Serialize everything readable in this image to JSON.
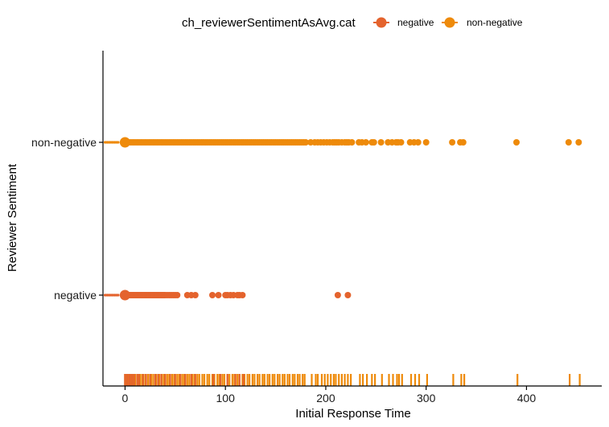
{
  "chart_data": {
    "type": "scatter",
    "xlabel": "Initial Response Time",
    "ylabel": "Reviewer Sentiment",
    "xlim": [
      -22,
      475
    ],
    "x_ticks": [
      0,
      100,
      200,
      300,
      400
    ],
    "categories": [
      "negative",
      "non-negative"
    ],
    "legend": {
      "title": "ch_reviewerSentimentAsAvg.cat",
      "placement": "top",
      "entries": [
        "negative",
        "non-negative"
      ]
    },
    "colors": {
      "negative": "#E4632D",
      "non-negative": "#EE8A0A"
    },
    "grid": false,
    "series": [
      {
        "name": "negative",
        "category": "negative",
        "points": [
          0,
          1,
          2,
          3,
          4,
          5,
          6,
          7,
          8,
          9,
          10,
          11,
          12,
          13,
          14,
          15,
          16,
          17,
          18,
          19,
          20,
          21,
          22,
          23,
          24,
          25,
          26,
          27,
          28,
          29,
          30,
          31,
          32,
          33,
          34,
          35,
          36,
          37,
          38,
          39,
          40,
          42,
          44,
          46,
          48,
          50,
          52,
          62,
          66,
          70,
          87,
          93,
          100,
          102,
          105,
          108,
          112,
          114,
          117,
          212,
          222
        ]
      },
      {
        "name": "non-negative",
        "category": "non-negative",
        "points": [
          0,
          2,
          4,
          6,
          8,
          10,
          12,
          14,
          16,
          18,
          20,
          22,
          24,
          26,
          28,
          30,
          32,
          34,
          36,
          38,
          40,
          42,
          44,
          46,
          48,
          50,
          52,
          54,
          56,
          58,
          60,
          62,
          64,
          66,
          68,
          70,
          72,
          74,
          76,
          78,
          80,
          82,
          84,
          86,
          88,
          90,
          92,
          94,
          96,
          98,
          100,
          102,
          104,
          106,
          108,
          110,
          112,
          114,
          116,
          118,
          120,
          122,
          124,
          126,
          128,
          130,
          132,
          134,
          136,
          138,
          140,
          142,
          144,
          146,
          148,
          150,
          152,
          154,
          156,
          158,
          160,
          162,
          164,
          166,
          168,
          170,
          172,
          174,
          176,
          178,
          180,
          185,
          189,
          192,
          195,
          198,
          201,
          204,
          207,
          209,
          211,
          213,
          216,
          219,
          221,
          223,
          226,
          233,
          236,
          240,
          246,
          248,
          255,
          262,
          266,
          270,
          272,
          275,
          284,
          288,
          292,
          300,
          326,
          334,
          337,
          390,
          442,
          452
        ]
      }
    ],
    "rug": {
      "negative": [
        0,
        2,
        4,
        5,
        7,
        9,
        12,
        14,
        18,
        21,
        25,
        30,
        33,
        36,
        40,
        45,
        50,
        55,
        60,
        66,
        70,
        88,
        95,
        102,
        110,
        114,
        118
      ],
      "non-negative": [
        0,
        1,
        3,
        6,
        8,
        10,
        13,
        15,
        17,
        20,
        23,
        26,
        28,
        31,
        34,
        37,
        39,
        42,
        44,
        47,
        49,
        52,
        54,
        57,
        59,
        62,
        64,
        67,
        69,
        72,
        74,
        77,
        79,
        82,
        84,
        87,
        89,
        92,
        94,
        97,
        99,
        102,
        104,
        107,
        109,
        112,
        114,
        117,
        119,
        122,
        124,
        127,
        129,
        132,
        134,
        137,
        139,
        142,
        144,
        147,
        149,
        152,
        154,
        157,
        159,
        162,
        164,
        167,
        169,
        172,
        174,
        177,
        179,
        186,
        190,
        192,
        196,
        199,
        202,
        205,
        208,
        210,
        213,
        216,
        219,
        222,
        225,
        234,
        237,
        241,
        246,
        249,
        256,
        263,
        267,
        271,
        273,
        276,
        285,
        289,
        293,
        301,
        327,
        335,
        338,
        391,
        443,
        453
      ]
    },
    "jitter_band": {
      "negative": [
        -20,
        -6
      ],
      "non-negative": [
        -20,
        -6
      ]
    }
  }
}
